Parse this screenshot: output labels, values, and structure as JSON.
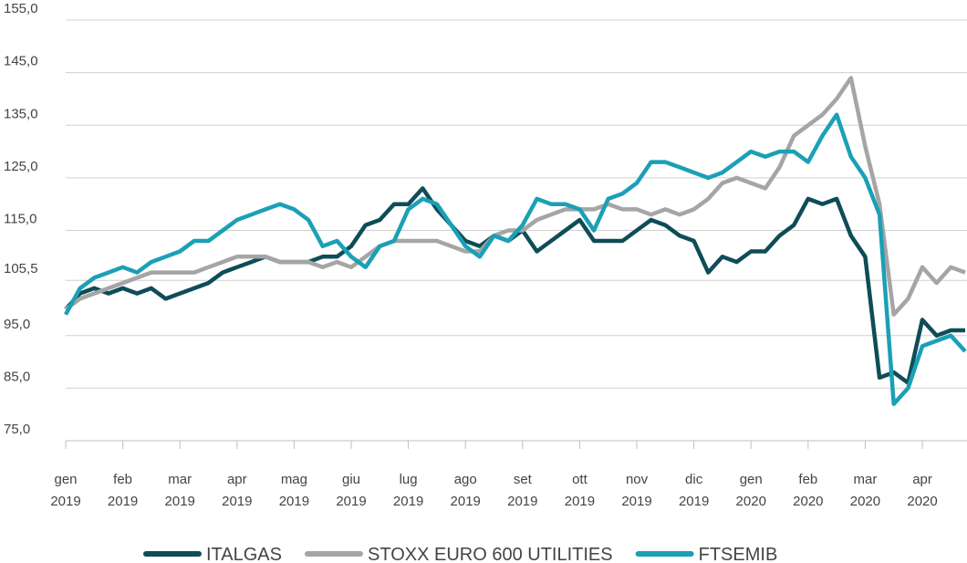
{
  "chart_data": {
    "type": "line",
    "categories": [
      "gen 2019",
      null,
      null,
      null,
      "feb 2019",
      null,
      null,
      null,
      "mar 2019",
      null,
      null,
      null,
      "apr 2019",
      null,
      null,
      null,
      "mag 2019",
      null,
      null,
      null,
      "giu 2019",
      null,
      null,
      null,
      "lug 2019",
      null,
      null,
      null,
      "ago 2019",
      null,
      null,
      null,
      "set 2019",
      null,
      null,
      null,
      "ott 2019",
      null,
      null,
      null,
      "nov 2019",
      null,
      null,
      null,
      "dic 2019",
      null,
      null,
      null,
      "gen 2020",
      null,
      null,
      null,
      "feb 2020",
      null,
      null,
      null,
      "mar 2020",
      null,
      null,
      null,
      "apr 2020",
      null,
      null,
      null
    ],
    "series": [
      {
        "name": "ITALGAS",
        "color": "#0e4d58",
        "values": [
          100,
          103,
          104,
          103,
          104,
          103,
          104,
          102,
          103,
          104,
          105,
          107,
          108,
          109,
          110,
          109,
          109,
          109,
          110,
          110,
          112,
          116,
          117,
          120,
          120,
          123,
          119,
          116,
          113,
          112,
          114,
          113,
          115,
          111,
          113,
          115,
          117,
          113,
          113,
          113,
          115,
          117,
          116,
          114,
          113,
          107,
          110,
          109,
          111,
          111,
          114,
          116,
          121,
          120,
          121,
          114,
          110,
          87,
          88,
          86,
          98,
          95,
          96,
          96
        ]
      },
      {
        "name": "STOXX EURO 600 UTILITIES",
        "color": "#a5a5a5",
        "values": [
          100,
          102,
          103,
          104,
          105,
          106,
          107,
          107,
          107,
          107,
          108,
          109,
          110,
          110,
          110,
          109,
          109,
          109,
          108,
          109,
          108,
          110,
          112,
          113,
          113,
          113,
          113,
          112,
          111,
          111,
          114,
          115,
          115,
          117,
          118,
          119,
          119,
          119,
          120,
          119,
          119,
          118,
          119,
          118,
          119,
          121,
          124,
          125,
          124,
          123,
          127,
          133,
          135,
          137,
          140,
          144,
          131,
          120,
          99,
          102,
          108,
          105,
          108,
          107
        ]
      },
      {
        "name": "FTSEMIB",
        "color": "#1ba0b5",
        "values": [
          99,
          104,
          106,
          107,
          108,
          107,
          109,
          110,
          111,
          113,
          113,
          115,
          117,
          118,
          119,
          120,
          119,
          117,
          112,
          113,
          110,
          108,
          112,
          113,
          119,
          121,
          120,
          116,
          112,
          110,
          114,
          113,
          116,
          121,
          120,
          120,
          119,
          115,
          121,
          122,
          124,
          128,
          128,
          127,
          126,
          125,
          126,
          128,
          130,
          129,
          130,
          130,
          128,
          133,
          137,
          129,
          125,
          118,
          82,
          85,
          93,
          94,
          95,
          92
        ]
      }
    ],
    "ylim": [
      75,
      155
    ],
    "yticks": [
      {
        "value": 75,
        "label": "75,0"
      },
      {
        "value": 85,
        "label": "85,0"
      },
      {
        "value": 95,
        "label": "95,0"
      },
      {
        "value": 105.5,
        "label": "105,5"
      },
      {
        "value": 115,
        "label": "115,0"
      },
      {
        "value": 125,
        "label": "125,0"
      },
      {
        "value": 135,
        "label": "135,0"
      },
      {
        "value": 145,
        "label": "145,0"
      },
      {
        "value": 155,
        "label": "155,0"
      }
    ],
    "grid": true,
    "legend": "bottom"
  }
}
